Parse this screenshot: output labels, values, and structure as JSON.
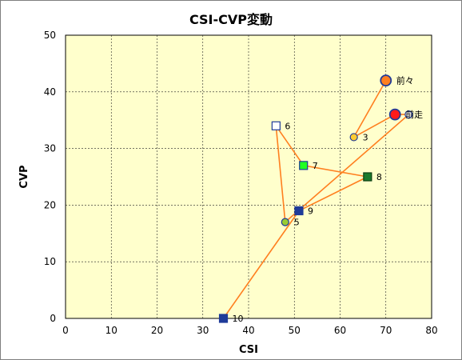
{
  "chart_data": {
    "type": "scatter",
    "title": "CSI-CVP変動",
    "xlabel": "CSI",
    "ylabel": "CVP",
    "xlim": [
      0,
      80
    ],
    "ylim": [
      0,
      50
    ],
    "x_ticks": [
      "0",
      "10",
      "20",
      "30",
      "40",
      "50",
      "60",
      "70",
      "80"
    ],
    "y_ticks": [
      "0",
      "10",
      "20",
      "30",
      "40",
      "50"
    ],
    "grid": true,
    "plot_background": "#ffffcc",
    "line_color": "#ff7f1f",
    "points": [
      {
        "label": "10",
        "x": 34.5,
        "y": 0,
        "marker": "square",
        "fill": "#1f3b99",
        "stroke": "#1f3b99"
      },
      {
        "label": "9",
        "x": 51,
        "y": 19,
        "marker": "square",
        "fill": "#1f3b99",
        "stroke": "#1f3b99"
      },
      {
        "label": "8",
        "x": 66,
        "y": 25,
        "marker": "square",
        "fill": "#1a7a2c",
        "stroke": "#0b3d12"
      },
      {
        "label": "7",
        "x": 52,
        "y": 27,
        "marker": "square",
        "fill": "#22ff22",
        "stroke": "#1f3b99"
      },
      {
        "label": "6",
        "x": 46,
        "y": 34,
        "marker": "square",
        "fill": "#ffffff",
        "stroke": "#1f3b99"
      },
      {
        "label": "5",
        "x": 48,
        "y": 17,
        "marker": "circle",
        "fill": "#99cc33",
        "stroke": "#1f3b99"
      },
      {
        "label": "3",
        "x": 63,
        "y": 32,
        "marker": "circle",
        "fill": "#ffcc33",
        "stroke": "#1f3b99"
      },
      {
        "label": "前々",
        "x": 70,
        "y": 42,
        "marker": "circle",
        "fill": "#ff7f1f",
        "stroke": "#1f3b99"
      },
      {
        "label": "前走",
        "x": 72,
        "y": 36,
        "marker": "circle",
        "fill": "#ff1a1a",
        "stroke": "#1f3b99"
      },
      {
        "label": "",
        "x": 75,
        "y": 36,
        "marker": "circle",
        "fill": "#ffffff",
        "stroke": "#1f3b99"
      }
    ],
    "path_order": [
      0,
      1,
      2,
      3,
      4,
      5,
      9,
      8,
      6,
      7
    ]
  }
}
